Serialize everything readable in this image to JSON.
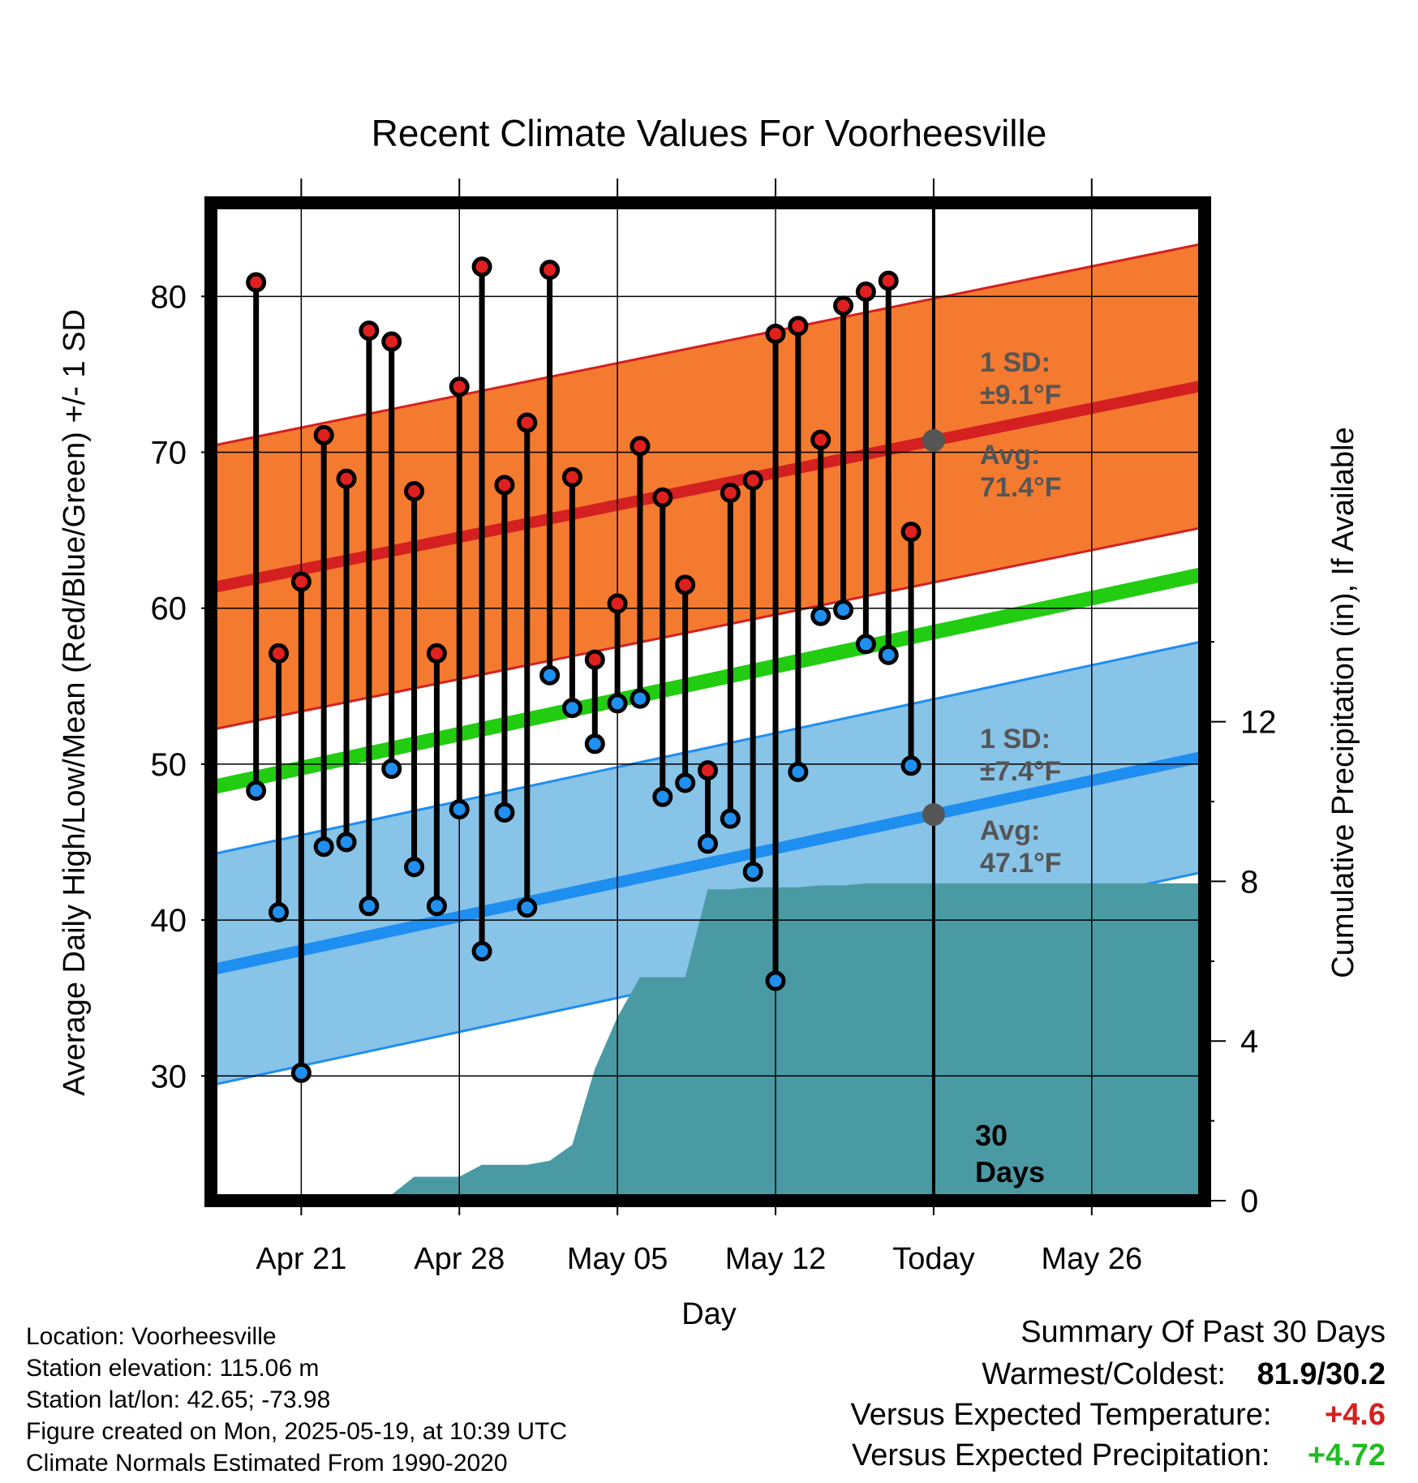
{
  "chart_data": {
    "type": "line",
    "title": "Recent Climate Values For Voorheesville",
    "xlabel": "Day",
    "ylabel": "Average Daily High/Low/Mean (Red/Blue/Green) +/- 1 SD",
    "y2label": "Cumulative Precipitation (in), If Available",
    "ylim": [
      22,
      86
    ],
    "y_ticks": [
      "30",
      "40",
      "50",
      "60",
      "70",
      "80"
    ],
    "y2lim": [
      0,
      25
    ],
    "y2_ticks": [
      "0",
      "4",
      "8",
      "12"
    ],
    "x_range_days": [
      "2025-04-17",
      "2025-05-31"
    ],
    "x_ticks": [
      {
        "date": "2025-04-21",
        "label": "Apr 21"
      },
      {
        "date": "2025-04-28",
        "label": "Apr 28"
      },
      {
        "date": "2025-05-05",
        "label": "May 05"
      },
      {
        "date": "2025-05-12",
        "label": "May 12"
      },
      {
        "date": "2025-05-19",
        "label": "Today"
      },
      {
        "date": "2025-05-26",
        "label": "May 26"
      }
    ],
    "today": "2025-05-19",
    "days_label": "30\nDays",
    "normals": {
      "high": {
        "start": {
          "date": "2025-04-17",
          "mean": 61.3
        },
        "end": {
          "date": "2025-05-31",
          "mean": 74.3
        },
        "sd": 9.1
      },
      "low": {
        "start": {
          "date": "2025-04-17",
          "mean": 36.8
        },
        "end": {
          "date": "2025-05-31",
          "mean": 50.5
        },
        "sd": 7.4
      },
      "mean_line": {
        "start": {
          "date": "2025-04-17",
          "value": 48.5
        },
        "end": {
          "date": "2025-05-31",
          "value": 62.2
        }
      }
    },
    "annotations": {
      "high_sd": "1 SD:\n±9.1°F",
      "high_avg": "Avg:\n71.4°F",
      "low_sd": "1 SD:\n±7.4°F",
      "low_avg": "Avg:\n47.1°F"
    },
    "series": [
      {
        "name": "High",
        "color": "#e02020",
        "dates": [
          "2025-04-19",
          "2025-04-20",
          "2025-04-21",
          "2025-04-22",
          "2025-04-23",
          "2025-04-24",
          "2025-04-25",
          "2025-04-26",
          "2025-04-27",
          "2025-04-28",
          "2025-04-29",
          "2025-04-30",
          "2025-05-01",
          "2025-05-02",
          "2025-05-03",
          "2025-05-04",
          "2025-05-05",
          "2025-05-06",
          "2025-05-07",
          "2025-05-08",
          "2025-05-09",
          "2025-05-10",
          "2025-05-11",
          "2025-05-12",
          "2025-05-13",
          "2025-05-14",
          "2025-05-15",
          "2025-05-16",
          "2025-05-17",
          "2025-05-18"
        ],
        "values": [
          80.9,
          57.1,
          61.7,
          71.1,
          68.3,
          77.8,
          77.1,
          67.5,
          57.1,
          74.2,
          81.9,
          67.9,
          71.9,
          81.7,
          68.4,
          56.7,
          60.3,
          70.4,
          67.1,
          61.5,
          49.6,
          67.4,
          68.2,
          77.6,
          78.1,
          70.8,
          79.4,
          80.3,
          81.0,
          64.9
        ]
      },
      {
        "name": "Low",
        "color": "#2090f0",
        "dates": [
          "2025-04-19",
          "2025-04-20",
          "2025-04-21",
          "2025-04-22",
          "2025-04-23",
          "2025-04-24",
          "2025-04-25",
          "2025-04-26",
          "2025-04-27",
          "2025-04-28",
          "2025-04-29",
          "2025-04-30",
          "2025-05-01",
          "2025-05-02",
          "2025-05-03",
          "2025-05-04",
          "2025-05-05",
          "2025-05-06",
          "2025-05-07",
          "2025-05-08",
          "2025-05-09",
          "2025-05-10",
          "2025-05-11",
          "2025-05-12",
          "2025-05-13",
          "2025-05-14",
          "2025-05-15",
          "2025-05-16",
          "2025-05-17",
          "2025-05-18"
        ],
        "values": [
          48.3,
          40.5,
          30.2,
          44.7,
          45.0,
          40.9,
          49.7,
          43.4,
          40.9,
          47.1,
          38.0,
          46.9,
          40.8,
          55.7,
          53.6,
          51.3,
          53.9,
          54.2,
          47.9,
          48.8,
          44.9,
          46.5,
          43.1,
          36.1,
          49.5,
          59.5,
          59.9,
          57.7,
          57.0,
          49.9
        ]
      },
      {
        "name": "Cumulative Precipitation",
        "color": "#4a9aa4",
        "dates": [
          "2025-04-18",
          "2025-04-19",
          "2025-04-20",
          "2025-04-21",
          "2025-04-22",
          "2025-04-23",
          "2025-04-24",
          "2025-04-25",
          "2025-04-26",
          "2025-04-27",
          "2025-04-28",
          "2025-04-29",
          "2025-04-30",
          "2025-05-01",
          "2025-05-02",
          "2025-05-03",
          "2025-05-04",
          "2025-05-05",
          "2025-05-06",
          "2025-05-07",
          "2025-05-08",
          "2025-05-09",
          "2025-05-10",
          "2025-05-11",
          "2025-05-12",
          "2025-05-13",
          "2025-05-14",
          "2025-05-15",
          "2025-05-16",
          "2025-05-17",
          "2025-05-18",
          "2025-05-31"
        ],
        "values": [
          0,
          0.05,
          0.05,
          0.05,
          0.08,
          0.08,
          0.08,
          0.15,
          0.6,
          0.6,
          0.6,
          0.9,
          0.9,
          0.9,
          1.0,
          1.4,
          3.3,
          4.6,
          5.6,
          5.6,
          5.6,
          7.8,
          7.8,
          7.85,
          7.85,
          7.85,
          7.9,
          7.9,
          7.95,
          7.95,
          7.95,
          7.95
        ]
      }
    ]
  },
  "footer": {
    "location": "Location: Voorheesville",
    "elevation": "Station elevation: 115.06 m",
    "latlon": "Station lat/lon: 42.65; -73.98",
    "created": "Figure created on Mon, 2025-05-19, at 10:39 UTC",
    "normals": "Climate Normals Estimated From 1990-2020"
  },
  "summary": {
    "title": "Summary Of Past 30 Days",
    "warmest_label": "Warmest/Coldest:",
    "warmest_value": "81.9/30.2",
    "temp_label": "Versus Expected Temperature:",
    "temp_value": "+4.6",
    "temp_color": "#d42020",
    "precip_label": "Versus Expected Precipitation:",
    "precip_value": "+4.72",
    "precip_color": "#22bb22"
  },
  "colors": {
    "high_band": "#f47a30",
    "high_line": "#d42020",
    "low_band": "#88c3e8",
    "low_line": "#1e8ef0",
    "mean_line": "#22cc11",
    "precip": "#4a9aa4",
    "annotation": "#555555"
  }
}
